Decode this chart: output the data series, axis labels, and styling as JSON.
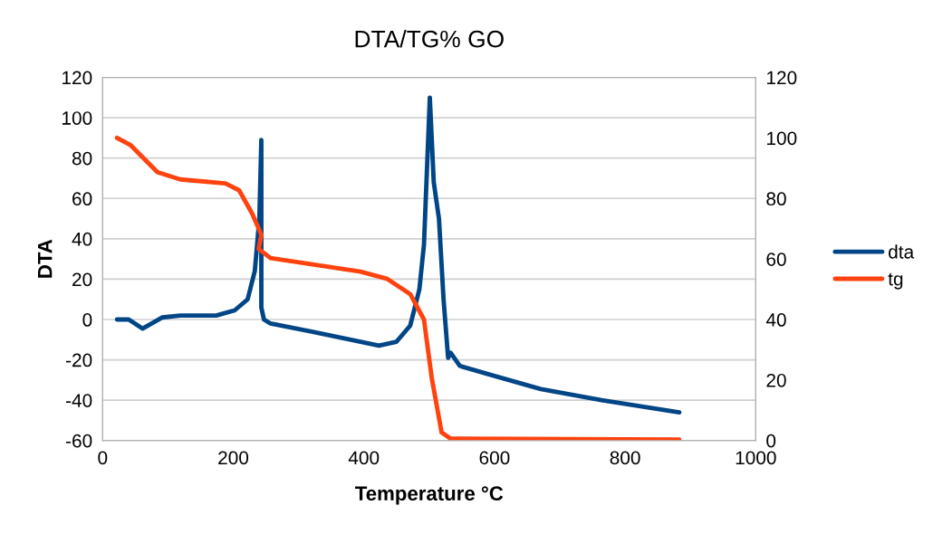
{
  "chart_data": {
    "type": "line",
    "title": "DTA/TG% GO",
    "xlabel": "Temperature °C",
    "ylabel": "DTA",
    "xlim": [
      0,
      1000
    ],
    "xticks": [
      0,
      200,
      400,
      600,
      800,
      1000
    ],
    "ylim": [
      -60,
      120
    ],
    "yticks": [
      -60,
      -40,
      -20,
      0,
      20,
      40,
      60,
      80,
      100,
      120
    ],
    "y2lim": [
      0,
      120
    ],
    "y2ticks": [
      0,
      20,
      40,
      60,
      80,
      100,
      120
    ],
    "grid": "y",
    "legend": "right",
    "marker": "none",
    "line_style": "solid",
    "series": [
      {
        "name": "dta",
        "color": "#004586",
        "x": [
          22,
          40,
          61,
          91,
          119,
          174,
          202,
          222,
          233,
          240,
          243,
          243,
          247,
          257,
          320,
          395,
          423,
          450,
          471,
          485,
          492,
          501,
          507,
          515,
          522,
          529,
          533,
          547,
          600,
          671,
          764,
          883
        ],
        "values": [
          0,
          0,
          -4.5,
          1,
          2,
          2,
          4.5,
          10,
          24,
          50,
          89,
          6,
          0,
          -2,
          -6,
          -11,
          -13,
          -11,
          -3,
          15,
          37,
          110,
          68,
          50,
          10,
          -19,
          -16.5,
          -23,
          -28,
          -34.5,
          -40,
          -46
        ]
      },
      {
        "name": "tg",
        "color": "#ff420e",
        "axis": "y2",
        "x": [
          22,
          43,
          84,
          119,
          188,
          209,
          229,
          243,
          239,
          257,
          395,
          436,
          471,
          492,
          504,
          519,
          533,
          883
        ],
        "values": [
          100,
          97.6,
          88.7,
          86.3,
          85,
          82.7,
          75,
          68,
          63.3,
          60.3,
          55.8,
          53.4,
          48.4,
          40,
          20.6,
          2.7,
          0.6,
          0.3
        ]
      }
    ]
  }
}
